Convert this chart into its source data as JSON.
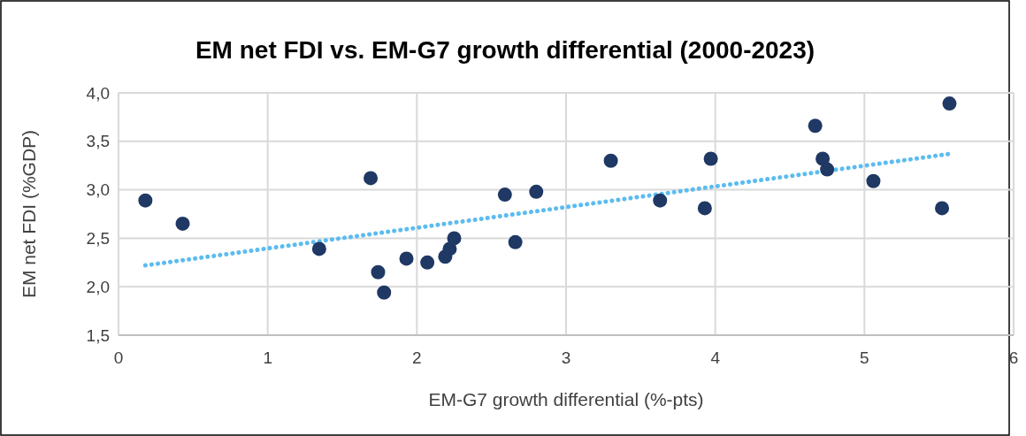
{
  "chart_data": {
    "type": "scatter",
    "title": "EM net FDI vs. EM-G7 growth differential (2000-2023)",
    "xlabel": "EM-G7 growth differential (%-pts)",
    "ylabel": "EM net FDI (%GDP)",
    "xlim": [
      0,
      6
    ],
    "xticks": [
      0,
      1,
      2,
      3,
      4,
      5,
      6
    ],
    "ylim": [
      1.5,
      4
    ],
    "yticks": [
      {
        "value": 1.5,
        "label": "1,5"
      },
      {
        "value": 2,
        "label": "2,0"
      },
      {
        "value": 2.5,
        "label": "2,5"
      },
      {
        "value": 3,
        "label": "3,0"
      },
      {
        "value": 3.5,
        "label": "3,5"
      },
      {
        "value": 4,
        "label": "4,0"
      }
    ],
    "grid": true,
    "series": [
      {
        "type": "line",
        "color": "#5bbcf0",
        "line_style": "dotted",
        "marker": "none",
        "x": [
          0.18,
          5.57
        ],
        "values": [
          2.22,
          3.37
        ]
      },
      {
        "type": "scatter",
        "color": "#1f3864",
        "marker": "circle",
        "x": [
          0.18,
          0.43,
          1.345,
          1.69,
          1.74,
          1.78,
          1.93,
          2.07,
          2.19,
          2.22,
          2.25,
          2.59,
          2.66,
          2.8,
          3.3,
          3.63,
          3.93,
          3.97,
          4.67,
          4.72,
          4.75,
          5.06,
          5.52,
          5.57
        ],
        "values": [
          2.89,
          2.65,
          2.39,
          3.12,
          2.15,
          1.94,
          2.29,
          2.25,
          2.31,
          2.39,
          2.5,
          2.95,
          2.46,
          2.98,
          3.3,
          2.89,
          2.81,
          3.32,
          3.66,
          3.32,
          3.21,
          3.09,
          2.81,
          3.89
        ]
      }
    ]
  }
}
